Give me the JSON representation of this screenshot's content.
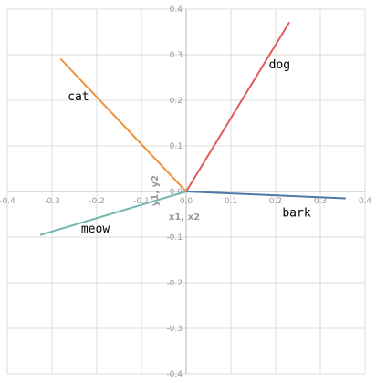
{
  "chart_data": {
    "type": "line",
    "title": "",
    "xlabel": "x1, x2",
    "ylabel": "y1, y2",
    "xlim": [
      -0.4,
      0.4
    ],
    "ylim": [
      -0.4,
      0.4
    ],
    "grid": true,
    "xticks": [
      "-0.4",
      "-0.3",
      "-0.2",
      "-0.1",
      "0.0",
      "0.1",
      "0.2",
      "0.3",
      "0.4"
    ],
    "yticks": [
      "0.4",
      "0.3",
      "0.2",
      "0.1",
      "0.0",
      "-0.1",
      "-0.2",
      "-0.3",
      "-0.4"
    ],
    "series": [
      {
        "name": "cat",
        "color": "#f0913a",
        "x": [
          0,
          -0.28
        ],
        "y": [
          0,
          0.29
        ],
        "label_at": [
          -0.265,
          0.2
        ]
      },
      {
        "name": "dog",
        "color": "#e05a5a",
        "x": [
          0,
          0.23
        ],
        "y": [
          0,
          0.37
        ],
        "label_at": [
          0.185,
          0.27
        ]
      },
      {
        "name": "bark",
        "color": "#4e79a7",
        "x": [
          0,
          0.355
        ],
        "y": [
          0,
          -0.015
        ],
        "label_at": [
          0.215,
          -0.055
        ]
      },
      {
        "name": "meow",
        "color": "#76b7b2",
        "x": [
          0,
          -0.325
        ],
        "y": [
          0,
          -0.095
        ],
        "label_at": [
          -0.235,
          -0.09
        ]
      }
    ]
  }
}
